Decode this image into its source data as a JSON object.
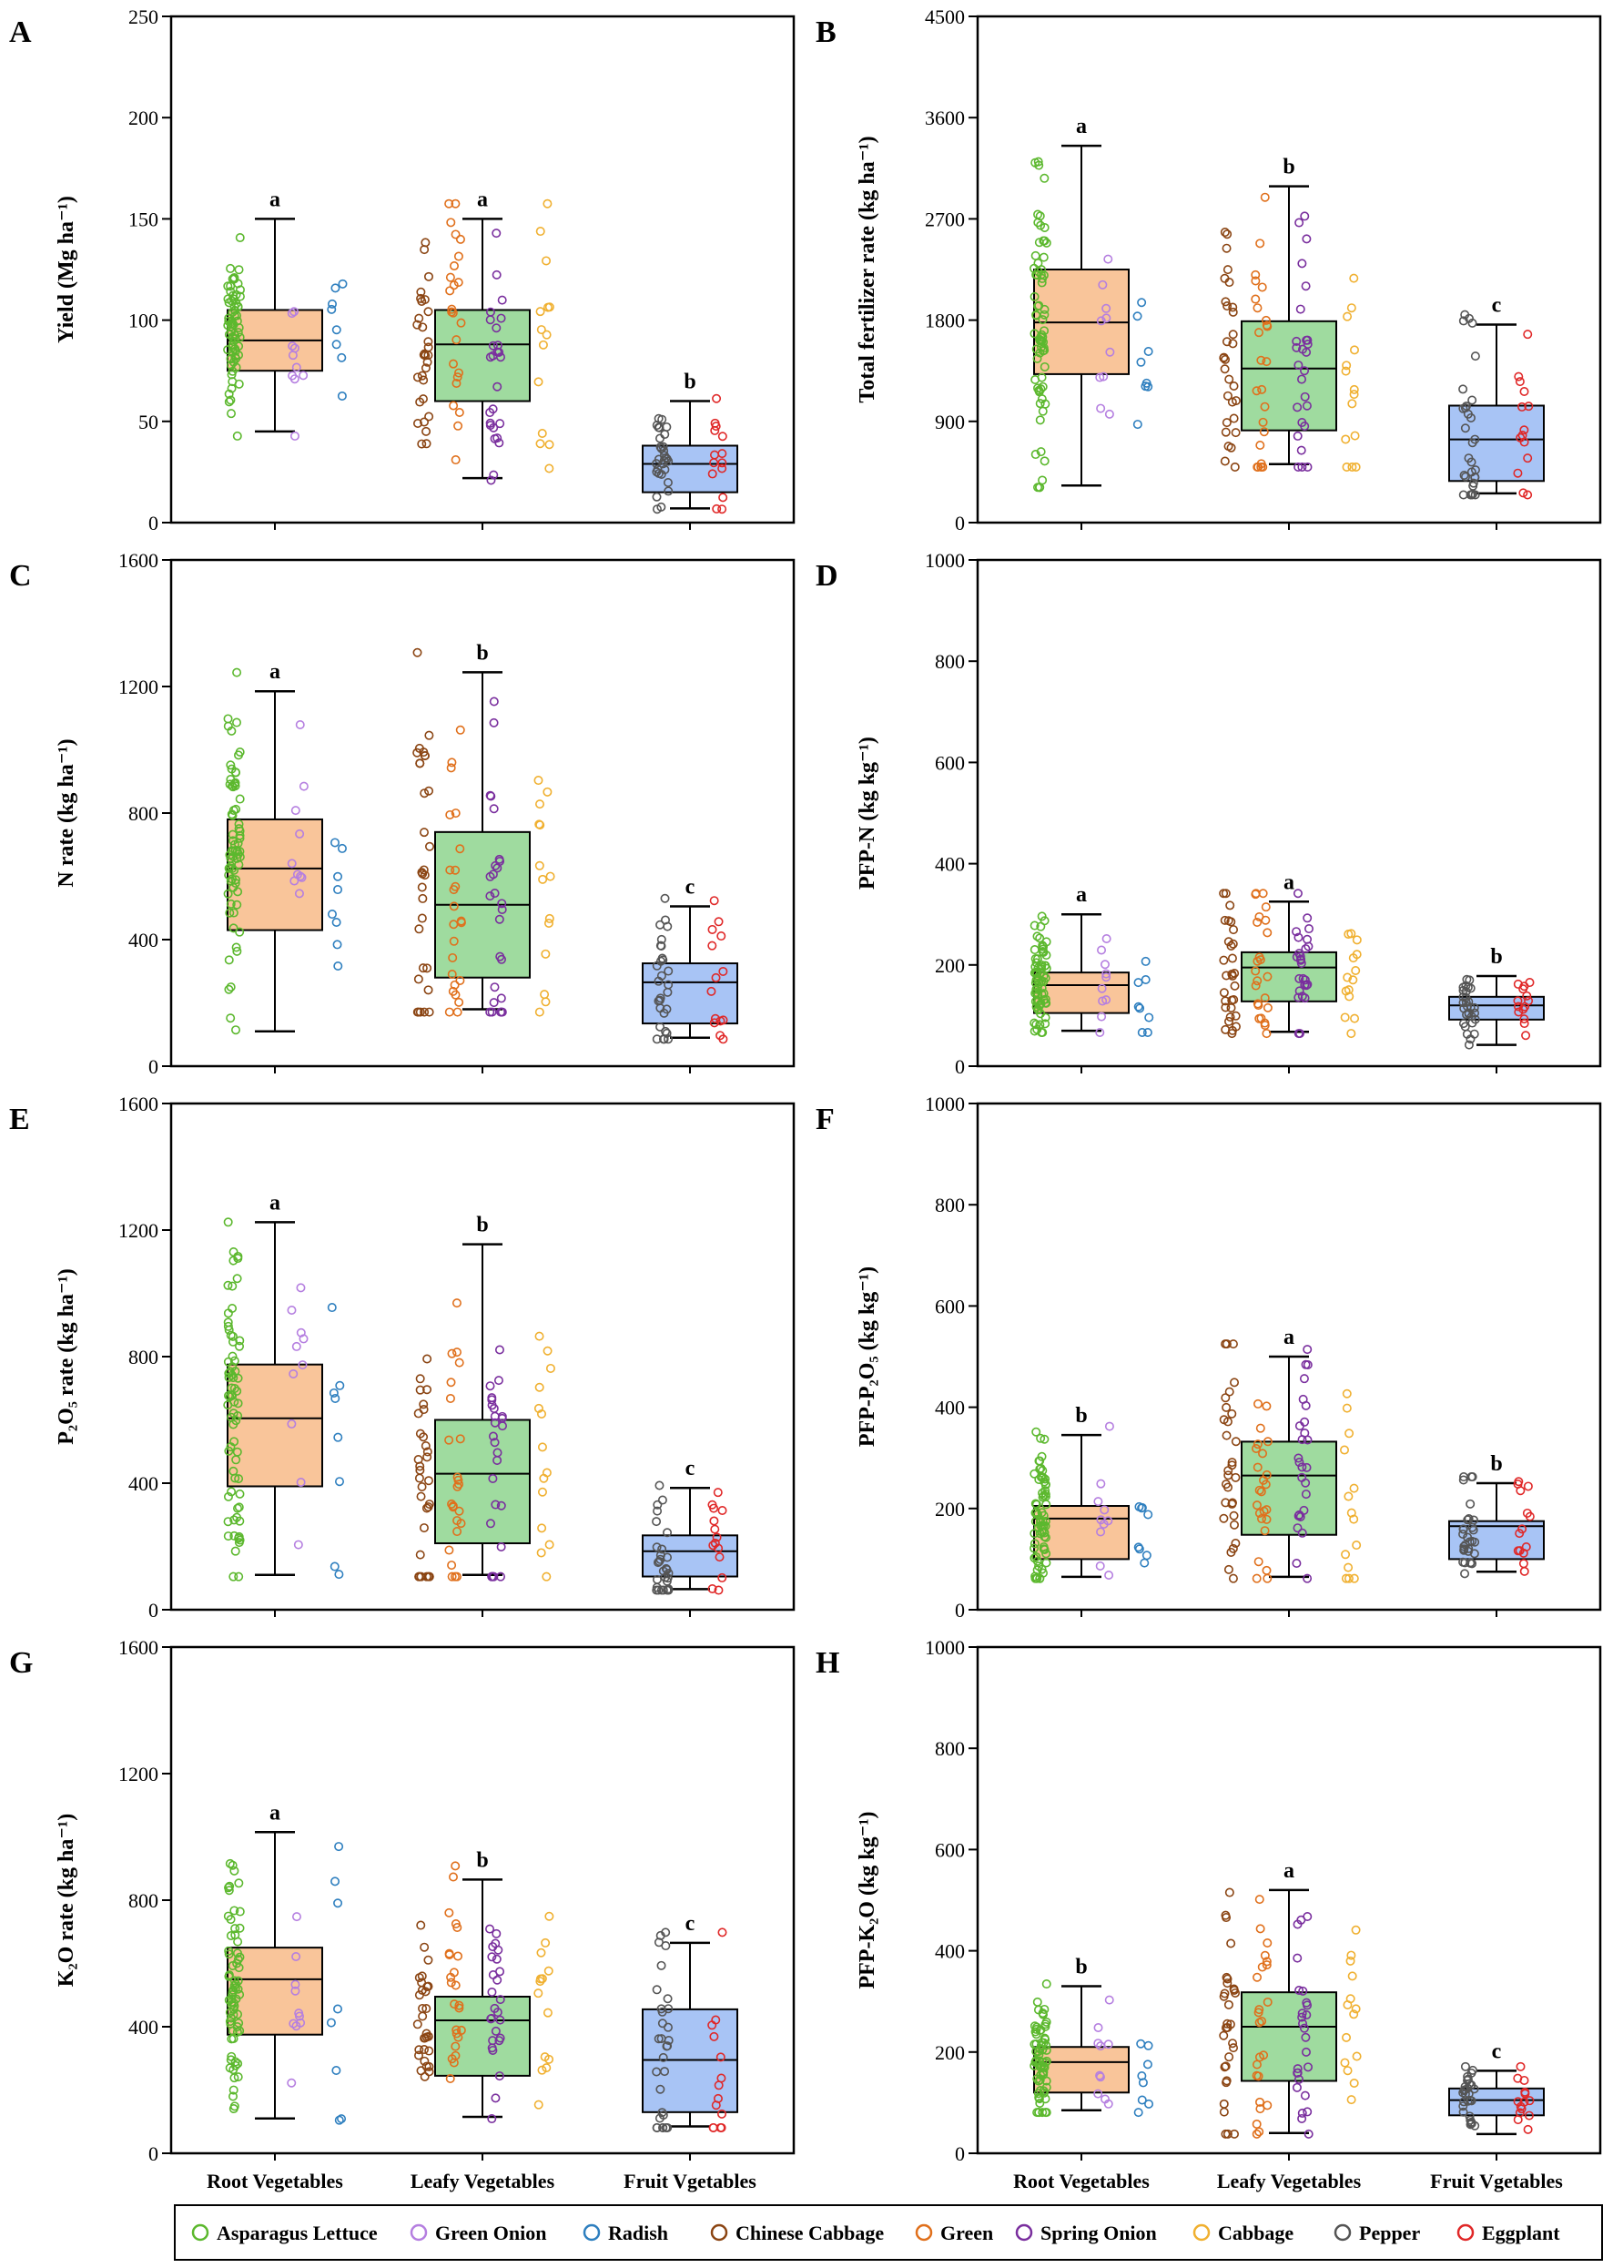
{
  "categories": [
    "Root Vegetables",
    "Leafy Vegetables",
    "Fruit Vgetables"
  ],
  "legend": [
    {
      "label": "Asparagus Lettuce",
      "color": "#5cb82e"
    },
    {
      "label": "Green Onion",
      "color": "#b57fe0"
    },
    {
      "label": "Radish",
      "color": "#2e7fbf"
    },
    {
      "label": "Chinese Cabbage",
      "color": "#8b4513"
    },
    {
      "label": "Green",
      "color": "#e0701c"
    },
    {
      "label": "Spring Onion",
      "color": "#7a2f9e"
    },
    {
      "label": "Cabbage",
      "color": "#f0b030"
    },
    {
      "label": "Pepper",
      "color": "#555555"
    },
    {
      "label": "Eggplant",
      "color": "#e02828"
    }
  ],
  "box_colors": [
    "#f9c59a",
    "#9fdb9f",
    "#a8c4f5"
  ],
  "chart_data": [
    {
      "panel": "A",
      "type": "box",
      "ylabel": "Yield (Mg ha⁻¹)",
      "ylim": [
        0,
        250
      ],
      "yticks": [
        0,
        50,
        100,
        150,
        200,
        250
      ],
      "boxes": [
        {
          "q1": 75,
          "median": 90,
          "q3": 105,
          "whisker_low": 45,
          "whisker_high": 150,
          "sig": "a"
        },
        {
          "q1": 60,
          "median": 88,
          "q3": 105,
          "whisker_low": 22,
          "whisker_high": 150,
          "sig": "a"
        },
        {
          "q1": 15,
          "median": 29,
          "q3": 38,
          "whisker_low": 7,
          "whisker_high": 60,
          "sig": "b"
        }
      ]
    },
    {
      "panel": "B",
      "type": "box",
      "ylabel": "Total fertilizer rate (kg ha⁻¹)",
      "ylim": [
        0,
        4500
      ],
      "yticks": [
        0,
        900,
        1800,
        2700,
        3600,
        4500
      ],
      "boxes": [
        {
          "q1": 1320,
          "median": 1780,
          "q3": 2250,
          "whisker_low": 330,
          "whisker_high": 3350,
          "sig": "a"
        },
        {
          "q1": 820,
          "median": 1370,
          "q3": 1790,
          "whisker_low": 520,
          "whisker_high": 2990,
          "sig": "b"
        },
        {
          "q1": 370,
          "median": 740,
          "q3": 1040,
          "whisker_low": 260,
          "whisker_high": 1760,
          "sig": "c"
        }
      ]
    },
    {
      "panel": "C",
      "type": "box",
      "ylabel": "N rate (kg ha⁻¹)",
      "ylim": [
        0,
        1600
      ],
      "yticks": [
        0,
        400,
        800,
        1200,
        1600
      ],
      "boxes": [
        {
          "q1": 430,
          "median": 625,
          "q3": 780,
          "whisker_low": 110,
          "whisker_high": 1185,
          "sig": "a"
        },
        {
          "q1": 280,
          "median": 510,
          "q3": 740,
          "whisker_low": 180,
          "whisker_high": 1245,
          "sig": "b"
        },
        {
          "q1": 135,
          "median": 265,
          "q3": 325,
          "whisker_low": 90,
          "whisker_high": 505,
          "sig": "c"
        }
      ]
    },
    {
      "panel": "D",
      "type": "box",
      "ylabel": "PFP-N (kg kg⁻¹)",
      "ylim": [
        0,
        1000
      ],
      "yticks": [
        0,
        200,
        400,
        600,
        800,
        1000
      ],
      "boxes": [
        {
          "q1": 105,
          "median": 160,
          "q3": 185,
          "whisker_low": 70,
          "whisker_high": 300,
          "sig": "a"
        },
        {
          "q1": 128,
          "median": 195,
          "q3": 225,
          "whisker_low": 68,
          "whisker_high": 325,
          "sig": "a"
        },
        {
          "q1": 92,
          "median": 120,
          "q3": 137,
          "whisker_low": 42,
          "whisker_high": 178,
          "sig": "b"
        }
      ]
    },
    {
      "panel": "E",
      "type": "box",
      "ylabel": "P₂O₅ rate (kg ha⁻¹)",
      "ylim": [
        0,
        1600
      ],
      "yticks": [
        0,
        400,
        800,
        1200,
        1600
      ],
      "boxes": [
        {
          "q1": 390,
          "median": 605,
          "q3": 775,
          "whisker_low": 110,
          "whisker_high": 1225,
          "sig": "a"
        },
        {
          "q1": 210,
          "median": 430,
          "q3": 600,
          "whisker_low": 110,
          "whisker_high": 1155,
          "sig": "b"
        },
        {
          "q1": 105,
          "median": 185,
          "q3": 235,
          "whisker_low": 65,
          "whisker_high": 385,
          "sig": "c"
        }
      ]
    },
    {
      "panel": "F",
      "type": "box",
      "ylabel": "PFP-P₂O₅ (kg kg⁻¹)",
      "ylim": [
        0,
        1000
      ],
      "yticks": [
        0,
        200,
        400,
        600,
        800,
        1000
      ],
      "boxes": [
        {
          "q1": 100,
          "median": 180,
          "q3": 205,
          "whisker_low": 65,
          "whisker_high": 345,
          "sig": "b"
        },
        {
          "q1": 148,
          "median": 265,
          "q3": 332,
          "whisker_low": 65,
          "whisker_high": 500,
          "sig": "a"
        },
        {
          "q1": 100,
          "median": 165,
          "q3": 175,
          "whisker_low": 75,
          "whisker_high": 250,
          "sig": "b"
        }
      ]
    },
    {
      "panel": "G",
      "type": "box",
      "ylabel": "K₂O rate (kg ha⁻¹)",
      "ylim": [
        0,
        1600
      ],
      "yticks": [
        0,
        400,
        800,
        1200,
        1600
      ],
      "boxes": [
        {
          "q1": 375,
          "median": 550,
          "q3": 650,
          "whisker_low": 110,
          "whisker_high": 1015,
          "sig": "a"
        },
        {
          "q1": 245,
          "median": 420,
          "q3": 495,
          "whisker_low": 115,
          "whisker_high": 865,
          "sig": "b"
        },
        {
          "q1": 130,
          "median": 295,
          "q3": 455,
          "whisker_low": 85,
          "whisker_high": 665,
          "sig": "c"
        }
      ]
    },
    {
      "panel": "H",
      "type": "box",
      "ylabel": "PFP-K₂O (kg kg⁻¹)",
      "ylim": [
        0,
        1000
      ],
      "yticks": [
        0,
        200,
        400,
        600,
        800,
        1000
      ],
      "boxes": [
        {
          "q1": 120,
          "median": 180,
          "q3": 210,
          "whisker_low": 85,
          "whisker_high": 330,
          "sig": "b"
        },
        {
          "q1": 143,
          "median": 250,
          "q3": 318,
          "whisker_low": 40,
          "whisker_high": 520,
          "sig": "a"
        },
        {
          "q1": 75,
          "median": 105,
          "q3": 128,
          "whisker_low": 38,
          "whisker_high": 163,
          "sig": "c"
        }
      ]
    }
  ]
}
